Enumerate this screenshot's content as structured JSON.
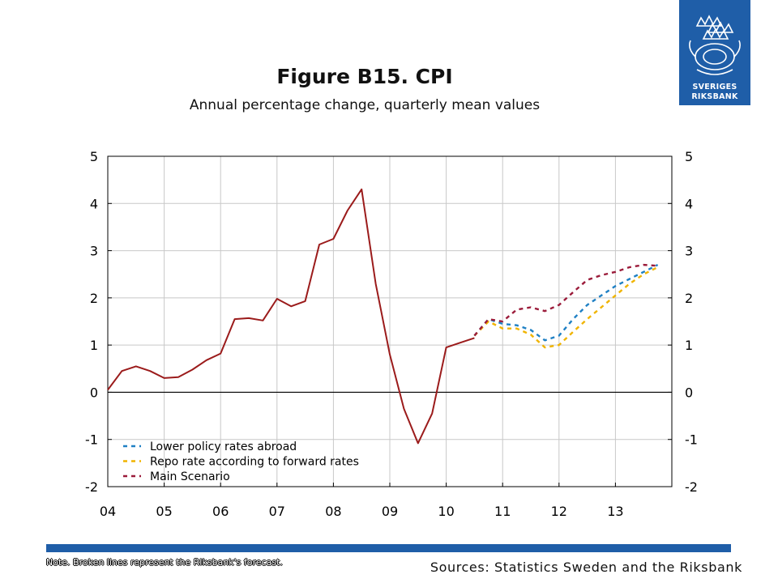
{
  "header": {
    "title": "Figure B15. CPI",
    "subtitle": "Annual percentage change, quarterly mean values"
  },
  "logo": {
    "line1": "SVERIGES",
    "line2": "RIKSBANK"
  },
  "footer": {
    "note": "Note. Broken lines represent the Riksbank's forecast.",
    "source": "Sources: Statistics Sweden and the Riksbank"
  },
  "colors": {
    "history": "#9b1b1b",
    "lower_policy": "#1f80c4",
    "repo_forward": "#f0b400",
    "main_scenario": "#9b1b3a",
    "grid": "#c8c8c8",
    "brand": "#1f5ea8"
  },
  "chart_data": {
    "type": "line",
    "title": "Figure B15. CPI",
    "subtitle": "Annual percentage change, quarterly mean values",
    "ylim": [
      -2,
      5
    ],
    "yticks": [
      -2,
      -1,
      0,
      1,
      2,
      3,
      4,
      5
    ],
    "xlim": [
      2004.0,
      2014.0
    ],
    "xticks": [
      "04",
      "05",
      "06",
      "07",
      "08",
      "09",
      "10",
      "11",
      "12",
      "13"
    ],
    "grid": true,
    "legend_position": "bottom-left",
    "dual_y_axis": true,
    "series": [
      {
        "name": "",
        "style": "solid",
        "color": "#9b1b1b",
        "points": [
          [
            2004.0,
            0.05
          ],
          [
            2004.25,
            0.45
          ],
          [
            2004.5,
            0.55
          ],
          [
            2004.75,
            0.45
          ],
          [
            2005.0,
            0.3
          ],
          [
            2005.25,
            0.32
          ],
          [
            2005.5,
            0.48
          ],
          [
            2005.75,
            0.68
          ],
          [
            2006.0,
            0.82
          ],
          [
            2006.25,
            1.55
          ],
          [
            2006.5,
            1.57
          ],
          [
            2006.75,
            1.52
          ],
          [
            2007.0,
            1.98
          ],
          [
            2007.25,
            1.82
          ],
          [
            2007.5,
            1.93
          ],
          [
            2007.75,
            3.13
          ],
          [
            2008.0,
            3.25
          ],
          [
            2008.25,
            3.85
          ],
          [
            2008.5,
            4.3
          ],
          [
            2008.75,
            2.3
          ],
          [
            2009.0,
            0.8
          ],
          [
            2009.25,
            -0.35
          ],
          [
            2009.5,
            -1.08
          ],
          [
            2009.75,
            -0.45
          ],
          [
            2010.0,
            0.95
          ],
          [
            2010.25,
            1.05
          ],
          [
            2010.5,
            1.15
          ]
        ]
      },
      {
        "name": "Lower policy rates abroad",
        "style": "dashed",
        "color": "#1f80c4",
        "points": [
          [
            2010.5,
            1.2
          ],
          [
            2010.75,
            1.55
          ],
          [
            2011.0,
            1.45
          ],
          [
            2011.25,
            1.42
          ],
          [
            2011.5,
            1.32
          ],
          [
            2011.75,
            1.1
          ],
          [
            2012.0,
            1.2
          ],
          [
            2012.25,
            1.55
          ],
          [
            2012.5,
            1.85
          ],
          [
            2012.75,
            2.05
          ],
          [
            2013.0,
            2.25
          ],
          [
            2013.25,
            2.4
          ],
          [
            2013.5,
            2.55
          ],
          [
            2013.75,
            2.7
          ]
        ]
      },
      {
        "name": "Repo rate according to forward rates",
        "style": "dashed",
        "color": "#f0b400",
        "points": [
          [
            2010.5,
            1.2
          ],
          [
            2010.75,
            1.5
          ],
          [
            2011.0,
            1.35
          ],
          [
            2011.25,
            1.35
          ],
          [
            2011.5,
            1.22
          ],
          [
            2011.75,
            0.95
          ],
          [
            2012.0,
            1.0
          ],
          [
            2012.25,
            1.28
          ],
          [
            2012.5,
            1.55
          ],
          [
            2012.75,
            1.8
          ],
          [
            2013.0,
            2.05
          ],
          [
            2013.25,
            2.3
          ],
          [
            2013.5,
            2.5
          ],
          [
            2013.75,
            2.65
          ]
        ]
      },
      {
        "name": "Main Scenario",
        "style": "dashed",
        "color": "#9b1b3a",
        "points": [
          [
            2010.5,
            1.2
          ],
          [
            2010.75,
            1.55
          ],
          [
            2011.0,
            1.5
          ],
          [
            2011.25,
            1.75
          ],
          [
            2011.5,
            1.8
          ],
          [
            2011.75,
            1.72
          ],
          [
            2012.0,
            1.85
          ],
          [
            2012.25,
            2.12
          ],
          [
            2012.5,
            2.38
          ],
          [
            2012.75,
            2.48
          ],
          [
            2013.0,
            2.55
          ],
          [
            2013.25,
            2.65
          ],
          [
            2013.5,
            2.7
          ],
          [
            2013.75,
            2.68
          ]
        ]
      }
    ],
    "legend": [
      {
        "label": "Lower policy rates abroad",
        "color": "#1f80c4"
      },
      {
        "label": "Repo rate according to forward rates",
        "color": "#f0b400"
      },
      {
        "label": "Main Scenario",
        "color": "#9b1b3a"
      }
    ]
  }
}
